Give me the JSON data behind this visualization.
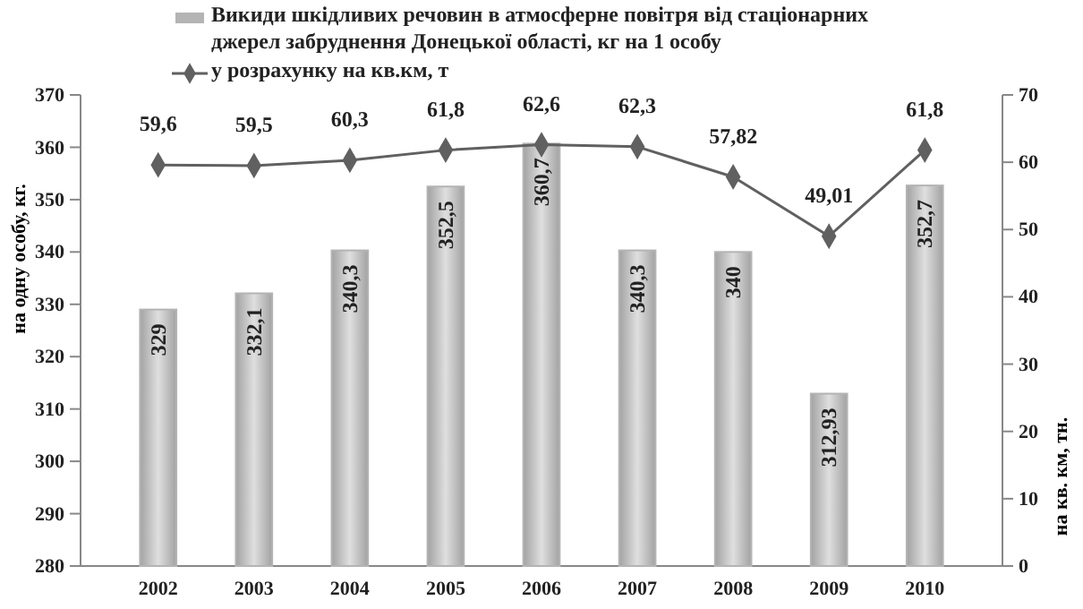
{
  "chart_data": {
    "type": "bar",
    "categories": [
      "2002",
      "2003",
      "2004",
      "2005",
      "2006",
      "2007",
      "2008",
      "2009",
      "2010"
    ],
    "series": [
      {
        "name": "Викиди шкідливих речовин в атмосферне повітря від стаціонарних джерел забруднення Донецької області, кг на 1 особу",
        "color": "#b4b4b4",
        "values": [
          329,
          332.1,
          340.3,
          352.5,
          360.7,
          340.3,
          340,
          312.93,
          352.7
        ],
        "value_labels": [
          "329",
          "332,1",
          "340,3",
          "352,5",
          "360,7",
          "340,3",
          "340",
          "312,93",
          "352,7"
        ]
      },
      {
        "name": "у розрахунку на кв.км, т",
        "type": "line",
        "axis": "y2",
        "color": "#606060",
        "marker": "diamond",
        "values": [
          59.6,
          59.5,
          60.3,
          61.8,
          62.6,
          62.3,
          57.82,
          49.01,
          61.8
        ],
        "value_labels": [
          "59,6",
          "59,5",
          "60,3",
          "61,8",
          "62,6",
          "62,3",
          "57,82",
          "49,01",
          "61,8"
        ]
      }
    ],
    "ylabel": "на одну особу, кг.",
    "y2label": "на кв. км, тн.",
    "ylim": [
      280,
      370
    ],
    "yticks": [
      280,
      290,
      300,
      310,
      320,
      330,
      340,
      350,
      360,
      370
    ],
    "y2lim": [
      0,
      70
    ],
    "y2ticks": [
      0,
      10,
      20,
      30,
      40,
      50,
      60,
      70
    ],
    "legend": "top",
    "grid": false
  }
}
